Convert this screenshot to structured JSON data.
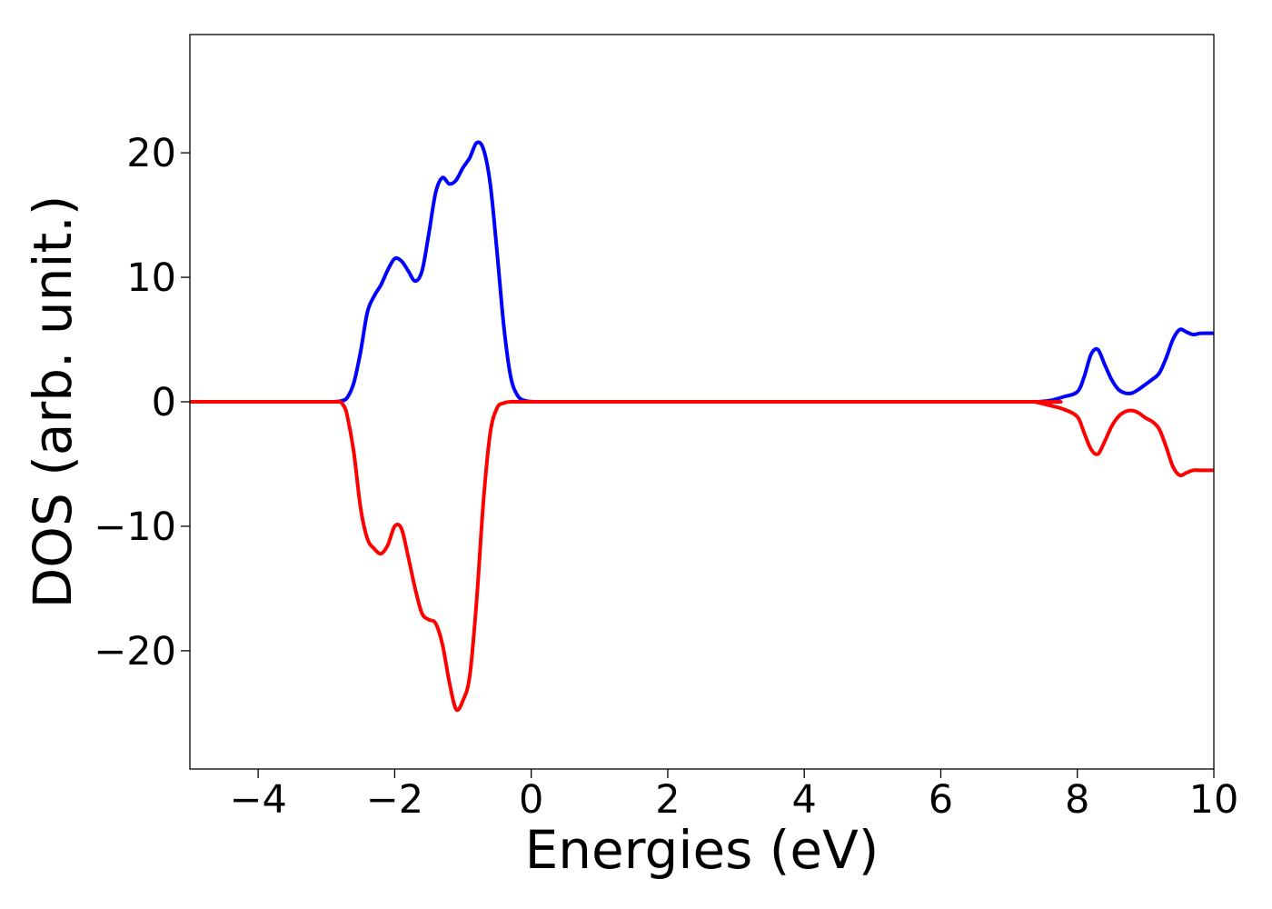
{
  "chart_data": {
    "type": "line",
    "title": "",
    "xlabel": "Energies (eV)",
    "ylabel": "DOS (arb. unit.)",
    "xlim": [
      -5,
      10
    ],
    "ylim": [
      -29.5,
      29.5
    ],
    "grid": false,
    "legend": "none",
    "x_ticks": [
      -4,
      -2,
      0,
      2,
      4,
      6,
      8,
      10
    ],
    "x_tick_labels": [
      "−4",
      "−2",
      "0",
      "2",
      "4",
      "6",
      "8",
      "10"
    ],
    "y_ticks": [
      -20,
      -10,
      0,
      10,
      20
    ],
    "y_tick_labels": [
      "−20",
      "−10",
      "0",
      "10",
      "20"
    ],
    "series": [
      {
        "color": "#0000ff",
        "x": [
          -5.0,
          -3.0,
          -2.9,
          -2.8,
          -2.7,
          -2.6,
          -2.5,
          -2.4,
          -2.3,
          -2.2,
          -2.1,
          -2.0,
          -1.9,
          -1.8,
          -1.7,
          -1.6,
          -1.5,
          -1.4,
          -1.3,
          -1.2,
          -1.1,
          -1.0,
          -0.9,
          -0.8,
          -0.7,
          -0.6,
          -0.5,
          -0.4,
          -0.3,
          -0.2,
          -0.1,
          0.0,
          0.1,
          0.2,
          0.3,
          0.4,
          0.5,
          0.6,
          0.8,
          7.2,
          7.4,
          7.6,
          7.8,
          8.0,
          8.1,
          8.2,
          8.3,
          8.4,
          8.5,
          8.6,
          8.7,
          8.8,
          8.9,
          9.0,
          9.1,
          9.2,
          9.3,
          9.4,
          9.5,
          9.6,
          9.7,
          9.8,
          9.9,
          10.0
        ],
        "y": [
          0,
          0,
          0,
          0.05,
          0.3,
          1.5,
          4.0,
          7.2,
          8.5,
          9.4,
          10.6,
          11.5,
          11.3,
          10.5,
          9.7,
          10.5,
          13.5,
          16.8,
          18.0,
          17.5,
          17.8,
          18.8,
          19.6,
          20.8,
          20.3,
          17.5,
          12.0,
          6.0,
          2.0,
          0.5,
          0.1,
          0.02,
          0,
          0,
          0,
          0,
          0,
          0,
          0,
          0,
          0,
          0.1,
          0.4,
          0.8,
          2.0,
          3.8,
          4.2,
          3.0,
          1.8,
          1.0,
          0.7,
          0.7,
          1.0,
          1.4,
          1.8,
          2.3,
          3.5,
          5.0,
          5.8,
          5.6,
          5.4,
          5.5,
          5.5,
          5.5
        ]
      },
      {
        "color": "#ff0000",
        "x": [
          -5.0,
          -3.0,
          -2.9,
          -2.8,
          -2.75,
          -2.7,
          -2.6,
          -2.5,
          -2.4,
          -2.3,
          -2.2,
          -2.1,
          -2.0,
          -1.9,
          -1.8,
          -1.7,
          -1.6,
          -1.5,
          -1.4,
          -1.3,
          -1.2,
          -1.1,
          -1.0,
          -0.9,
          -0.8,
          -0.7,
          -0.6,
          -0.5,
          -0.4,
          -0.3,
          -0.2,
          -0.1,
          0.0,
          0.1,
          0.2,
          0.4,
          7.2,
          7.4,
          7.6,
          7.8,
          8.0,
          8.1,
          8.2,
          8.3,
          8.4,
          8.5,
          8.6,
          8.7,
          8.8,
          8.9,
          9.0,
          9.1,
          9.2,
          9.3,
          9.4,
          9.5,
          9.6,
          9.7,
          9.8,
          9.9,
          10.0
        ],
        "y": [
          0,
          0,
          0,
          0,
          -0.3,
          -1.0,
          -4.0,
          -8.5,
          -11.0,
          -11.8,
          -12.2,
          -11.5,
          -10.0,
          -10.2,
          -12.5,
          -15.0,
          -17.0,
          -17.5,
          -17.8,
          -19.5,
          -22.5,
          -24.7,
          -24.0,
          -22.0,
          -16.0,
          -8.0,
          -2.5,
          -0.5,
          -0.1,
          0,
          0,
          0,
          0,
          0,
          0,
          0,
          0,
          -0.05,
          -0.3,
          -0.6,
          -1.2,
          -2.5,
          -3.8,
          -4.2,
          -3.2,
          -2.0,
          -1.2,
          -0.8,
          -0.7,
          -0.9,
          -1.3,
          -1.6,
          -2.2,
          -3.6,
          -5.2,
          -5.9,
          -5.7,
          -5.5,
          -5.5,
          -5.5,
          -5.5
        ]
      }
    ]
  }
}
